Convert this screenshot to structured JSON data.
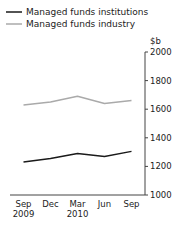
{
  "chart_data": {
    "type": "line",
    "title": "",
    "y_label": "$b",
    "categories": [
      "Sep\n2009",
      "Dec",
      "Mar\n2010",
      "Jun",
      "Sep"
    ],
    "series": [
      {
        "name": "Managed funds institutions",
        "color": "#1a1a1a",
        "values": [
          1230,
          1255,
          1290,
          1270,
          1305
        ]
      },
      {
        "name": "Managed funds industry",
        "color": "#aaaaaa",
        "values": [
          1630,
          1650,
          1690,
          1640,
          1660
        ]
      }
    ],
    "ylim": [
      1000,
      2000
    ],
    "yticks": [
      1000,
      1200,
      1400,
      1600,
      1800,
      2000
    ],
    "grid": false,
    "legend": "top-left"
  }
}
